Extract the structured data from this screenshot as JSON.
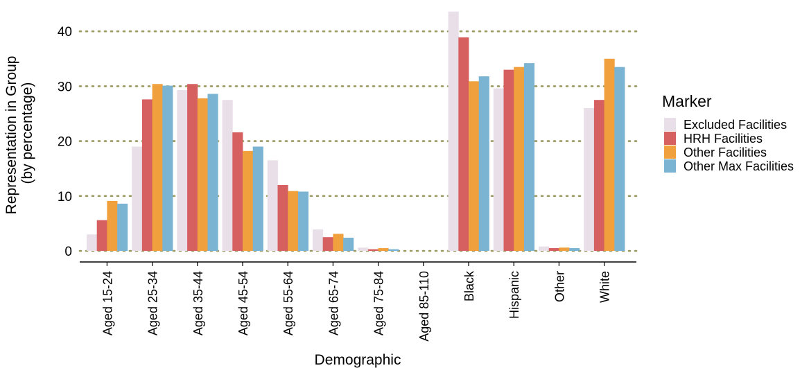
{
  "chart_data": {
    "type": "bar",
    "xlabel": "Demographic",
    "ylabel_lines": [
      "Representation in Group",
      "(by percentage)"
    ],
    "categories": [
      "Aged 15-24",
      "Aged 25-34",
      "Aged 35-44",
      "Aged 45-54",
      "Aged 55-64",
      "Aged 65-74",
      "Aged 75-84",
      "Aged 85-110",
      "Black",
      "Hispanic",
      "Other",
      "White"
    ],
    "series": [
      {
        "name": "Excluded Facilities",
        "color": "#e8dfe8",
        "values": [
          3.0,
          19.0,
          29.3,
          27.5,
          16.5,
          3.9,
          0.6,
          0.0,
          43.6,
          29.6,
          0.8,
          26.0
        ]
      },
      {
        "name": "HRH Facilities",
        "color": "#d65f5f",
        "values": [
          5.6,
          27.6,
          30.4,
          21.6,
          12.0,
          2.5,
          0.3,
          0.0,
          38.9,
          33.0,
          0.5,
          27.5
        ]
      },
      {
        "name": "Other Facilities",
        "color": "#f0a03c",
        "values": [
          9.1,
          30.4,
          27.8,
          18.2,
          10.9,
          3.1,
          0.5,
          0.0,
          30.9,
          33.5,
          0.6,
          35.0
        ]
      },
      {
        "name": "Other Max Facilities",
        "color": "#7ab4d2",
        "values": [
          8.6,
          30.1,
          28.6,
          19.0,
          10.8,
          2.4,
          0.3,
          0.0,
          31.8,
          34.2,
          0.5,
          33.5
        ]
      }
    ],
    "y_ticks": [
      0,
      10,
      20,
      30,
      40
    ],
    "ylim": [
      -1.5,
      43.6
    ],
    "grid": "horizontal dotted",
    "grid_color": "#9a9a60",
    "legend": {
      "title": "Marker",
      "position": "right"
    }
  }
}
